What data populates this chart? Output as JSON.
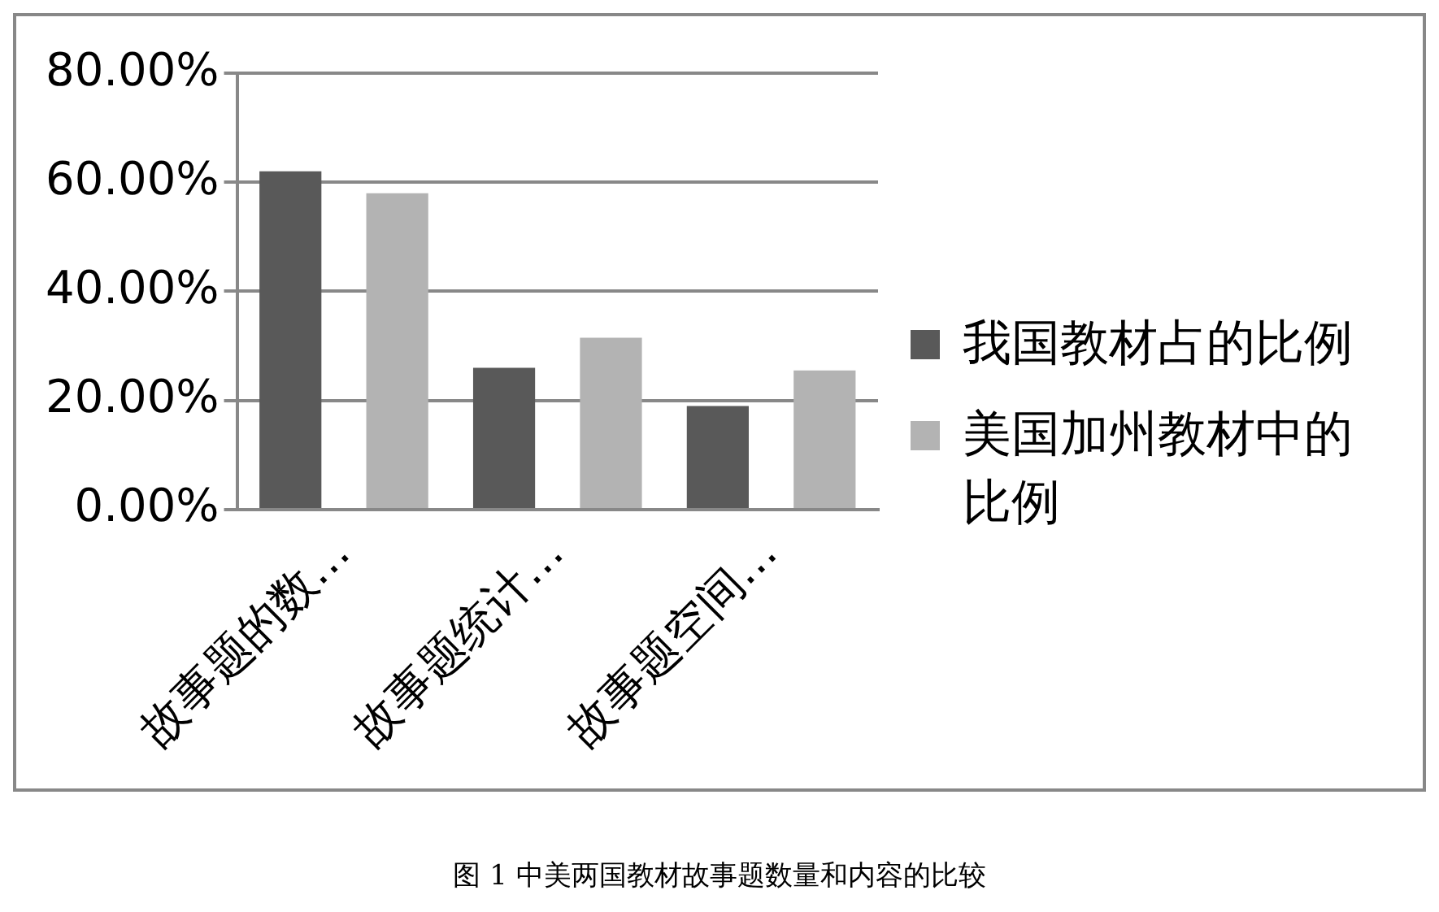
{
  "chart_data": {
    "type": "bar",
    "categories": [
      "故事题的数…",
      "故事题统计…",
      "故事题空间…"
    ],
    "series": [
      {
        "name": "我国教材占的比例",
        "color": "#595959",
        "values": [
          62,
          26,
          19
        ]
      },
      {
        "name": "美国加州教材中的比例",
        "color": "#b3b3b3",
        "values": [
          58,
          31.5,
          25.5
        ]
      }
    ],
    "ylim": [
      0,
      80
    ],
    "yticks": [
      {
        "value": 0,
        "label": "0.00%"
      },
      {
        "value": 20,
        "label": "20.00%"
      },
      {
        "value": 40,
        "label": "40.00%"
      },
      {
        "value": 60,
        "label": "60.00%"
      },
      {
        "value": 80,
        "label": "80.00%"
      }
    ],
    "grid": "y",
    "legend": "right",
    "annotations": [
      "图 1 中美两国教材故事题数量和内容的比较"
    ]
  }
}
